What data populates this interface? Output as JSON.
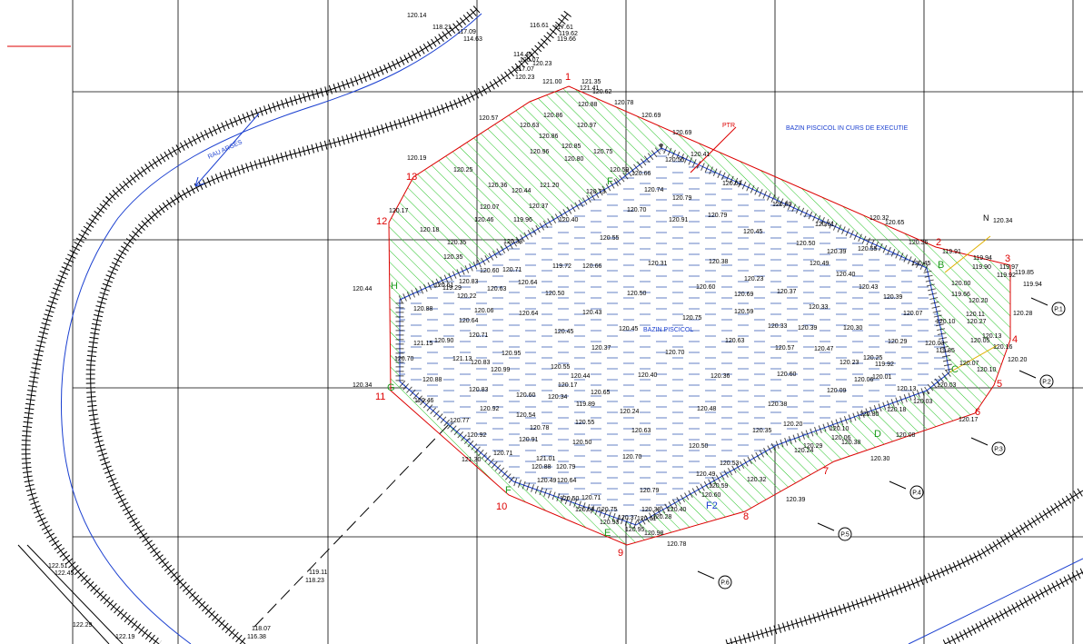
{
  "annotations": {
    "river": "RAU ARGES",
    "pond_in_progress": "BAZIN PISCICOL IN CURS DE EXECUTIE",
    "pond": "BAZIN PISCICOL",
    "ptr": "PTR",
    "north": "N"
  },
  "vertices": [
    "1",
    "2",
    "3",
    "4",
    "5",
    "6",
    "7",
    "8",
    "9",
    "10",
    "11",
    "12",
    "13"
  ],
  "side_letters": [
    "F",
    "B",
    "C",
    "D",
    "E",
    "F",
    "G",
    "H",
    "F2"
  ],
  "points": [
    "P.1",
    "P.2",
    "P.3",
    "P.4",
    "P.5",
    "P.6"
  ],
  "elevations": [
    "120.14",
    "118.21",
    "117.09",
    "114.63",
    "116.61",
    "117.61",
    "119.62",
    "119.66",
    "114.45",
    "120.07",
    "120.23",
    "117.07",
    "120.23",
    "121.00",
    "121.35",
    "121.41",
    "120.62",
    "120.57",
    "120.86",
    "120.88",
    "120.78",
    "120.69",
    "120.63",
    "120.97",
    "120.69",
    "120.86",
    "120.85",
    "120.96",
    "120.80",
    "120.75",
    "120.55",
    "120.41",
    "120.19",
    "120.25",
    "120.59",
    "120.66",
    "120.63",
    "120.36",
    "120.44",
    "121.20",
    "120.73",
    "120.74",
    "120.79",
    "120.07",
    "120.37",
    "120.17",
    "120.46",
    "119.96",
    "120.40",
    "120.70",
    "120.91",
    "120.79",
    "120.80",
    "120.32",
    "120.65",
    "120.18",
    "120.45",
    "120.61",
    "120.35",
    "120.38",
    "120.55",
    "120.50",
    "120.39",
    "120.55",
    "120.36",
    "120.31",
    "120.38",
    "120.49",
    "120.45",
    "119.72",
    "120.66",
    "120.35",
    "120.60",
    "120.71",
    "120.64",
    "120.23",
    "120.40",
    "120.61",
    "119.29",
    "120.83",
    "120.22",
    "120.63",
    "120.60",
    "120.69",
    "120.37",
    "120.43",
    "120.39",
    "120.50",
    "120.50",
    "120.44",
    "120.88",
    "120.06",
    "120.64",
    "120.43",
    "120.59",
    "120.33",
    "120.07",
    "120.64",
    "120.75",
    "120.45",
    "120.45",
    "120.33",
    "120.39",
    "120.30",
    "120.71",
    "120.90",
    "121.15",
    "120.63",
    "120.37",
    "120.95",
    "120.70",
    "120.57",
    "120.47",
    "120.29",
    "120.83",
    "121.13",
    "120.99",
    "120.55",
    "120.23",
    "120.25",
    "119.92",
    "120.70",
    "120.88",
    "120.44",
    "120.40",
    "120.36",
    "120.60",
    "120.06",
    "120.01",
    "120.17",
    "120.34",
    "120.83",
    "120.60",
    "120.34",
    "120.65",
    "120.09",
    "120.13",
    "120.03",
    "120.46",
    "119.89",
    "120.38",
    "120.03",
    "120.92",
    "120.54",
    "120.24",
    "120.48",
    "120.30",
    "120.18",
    "120.77",
    "120.55",
    "120.78",
    "120.63",
    "120.35",
    "120.20",
    "120.10",
    "120.06",
    "120.92",
    "120.91",
    "120.50",
    "120.50",
    "120.24",
    "120.29",
    "120.38",
    "120.08",
    "120.71",
    "121.30",
    "120.70",
    "121.01",
    "120.88",
    "120.79",
    "120.53",
    "120.30",
    "120.49",
    "120.59",
    "120.32",
    "120.49",
    "120.64",
    "120.79",
    "120.60",
    "120.71",
    "120.50",
    "120.39",
    "120.68",
    "120.75",
    "120.38",
    "120.40",
    "120.37",
    "120.61",
    "120.28",
    "120.93",
    "120.95",
    "120.98",
    "120.78",
    "119.91",
    "119.94",
    "119.90",
    "119.97",
    "119.85",
    "119.92",
    "119.94",
    "120.00",
    "119.66",
    "120.20",
    "120.34",
    "120.28",
    "120.10",
    "120.11",
    "120.27",
    "120.13",
    "120.16",
    "120.05",
    "120.03",
    "119.85",
    "120.07",
    "120.10",
    "120.20",
    "120.17",
    "122.51",
    "122.45",
    "119.11",
    "118.23",
    "122.29",
    "122.19",
    "118.07",
    "116.38"
  ]
}
